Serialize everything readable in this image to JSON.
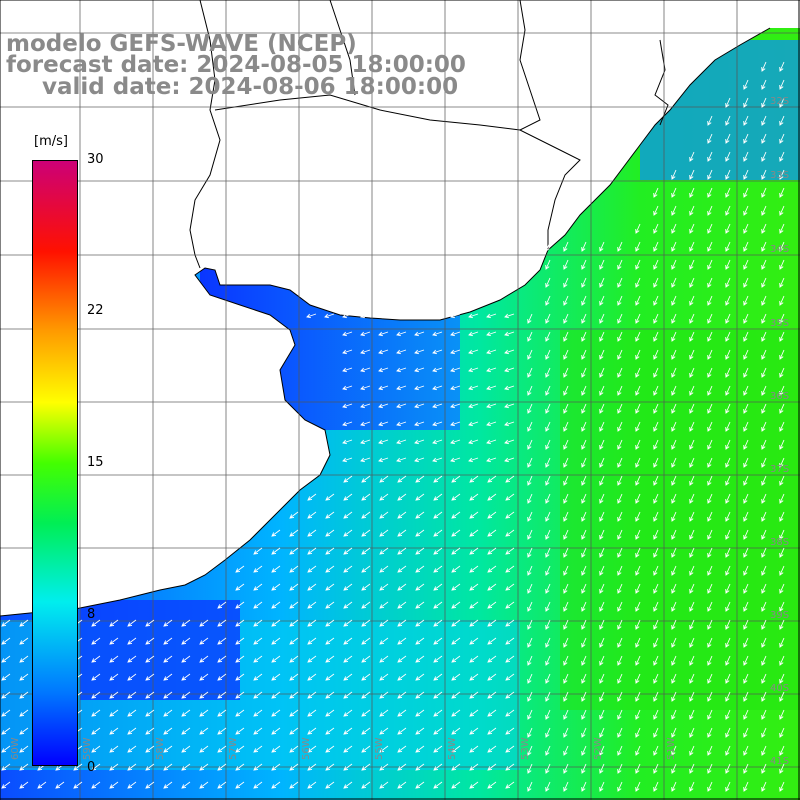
{
  "title": {
    "line1": "modelo GEFS-WAVE (NCEP)",
    "line2": "forecast date: 2024-08-05 18:00:00",
    "line3": "valid date: 2024-08-06 18:00:00"
  },
  "colorbar": {
    "unit": "[m/s]",
    "ticks": [
      "30",
      "22",
      "15",
      "8",
      "0"
    ],
    "gradient": [
      "#0000ff",
      "#0066ff",
      "#00ccff",
      "#00ffcc",
      "#00ff33",
      "#33ff00",
      "#ccff00",
      "#ffff00",
      "#ffaa00",
      "#ff5500",
      "#ff0000",
      "#ee0033",
      "#cc0066"
    ]
  },
  "map": {
    "lat_labels": [
      "32S",
      "33S",
      "34S",
      "35S",
      "36S",
      "37S",
      "38S",
      "39S",
      "40S",
      "41S"
    ],
    "lon_labels": [
      "60W",
      "59W",
      "58W",
      "57W",
      "56W",
      "55W",
      "54W",
      "53W",
      "52W",
      "51W"
    ],
    "land_color": "#ffffff",
    "grid_color": "#666666"
  }
}
